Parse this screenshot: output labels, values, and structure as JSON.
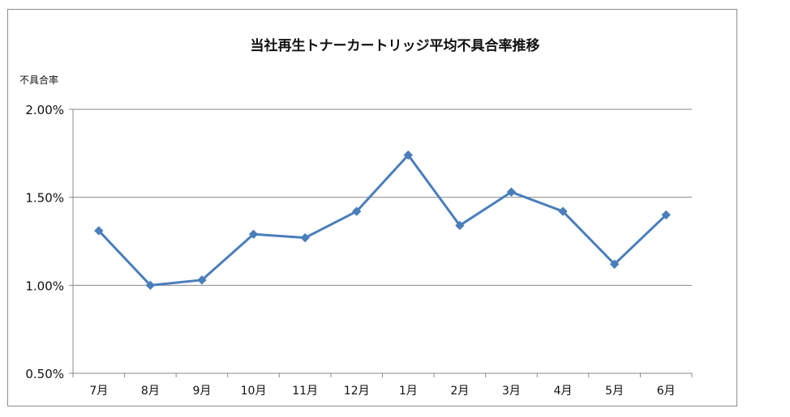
{
  "chart_data": {
    "type": "line",
    "title": "当社再生トナーカートリッジ平均不具合率推移",
    "xlabel": "",
    "ylabel": "不具合率",
    "ylim": [
      0.5,
      2.0
    ],
    "yticks": [
      "0.50%",
      "1.00%",
      "1.50%",
      "2.00%"
    ],
    "categories": [
      "7月",
      "8月",
      "9月",
      "10月",
      "11月",
      "12月",
      "1月",
      "2月",
      "3月",
      "4月",
      "5月",
      "6月"
    ],
    "series": [
      {
        "values": [
          1.31,
          1.0,
          1.03,
          1.29,
          1.27,
          1.42,
          1.74,
          1.34,
          1.53,
          1.42,
          1.12,
          1.4
        ]
      }
    ],
    "grid": true,
    "legend": "none",
    "line_color": "#4a7ebb",
    "grid_color": "#888888"
  }
}
